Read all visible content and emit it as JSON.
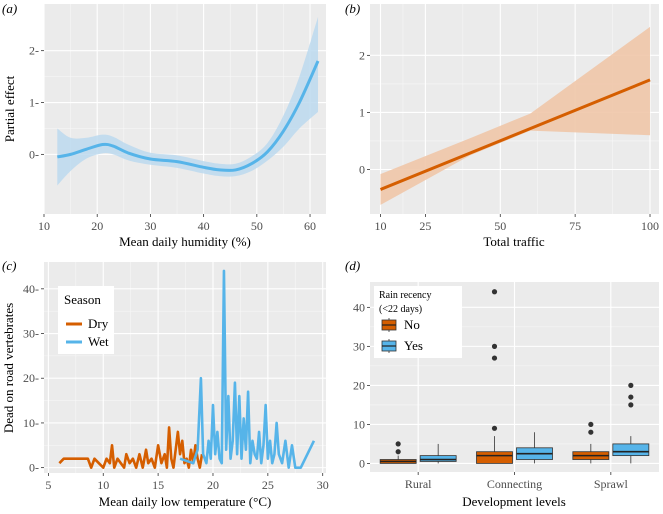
{
  "colors": {
    "blue": "#56b4e9",
    "blue_band": "#bcd9ef",
    "orange": "#d55e00",
    "orange_band": "#f0c7a8",
    "point": "#333333"
  },
  "chart_data": [
    {
      "id": "a",
      "letter": "(a)",
      "type": "line",
      "title": "",
      "xlabel": "Mean daily humidity (%)",
      "ylabel": "Partial effect",
      "xlim": [
        10,
        63
      ],
      "ylim": [
        -1.15,
        2.9
      ],
      "xticks": [
        "10",
        "20",
        "30",
        "40",
        "50",
        "60"
      ],
      "xtick_values": [
        10,
        20,
        30,
        40,
        50,
        60
      ],
      "yticks": [
        "0-",
        "1-",
        "2-"
      ],
      "ytick_values": [
        0,
        1,
        2
      ],
      "x": [
        12.5,
        15,
        18,
        21,
        23,
        26,
        30,
        35,
        40,
        43,
        46,
        49,
        52,
        55,
        58,
        61.5
      ],
      "y": [
        -0.05,
        0.0,
        0.1,
        0.19,
        0.16,
        0.02,
        -0.09,
        -0.14,
        -0.25,
        -0.3,
        -0.3,
        -0.18,
        0.05,
        0.45,
        1.0,
        1.8
      ],
      "ci_low": [
        -0.6,
        -0.32,
        -0.08,
        0.02,
        0.0,
        -0.12,
        -0.2,
        -0.26,
        -0.37,
        -0.42,
        -0.42,
        -0.32,
        -0.12,
        0.15,
        0.5,
        0.82
      ],
      "ci_high": [
        0.5,
        0.32,
        0.32,
        0.38,
        0.34,
        0.18,
        0.03,
        -0.02,
        -0.13,
        -0.18,
        -0.18,
        -0.04,
        0.22,
        0.75,
        1.5,
        2.65
      ]
    },
    {
      "id": "b",
      "letter": "(b)",
      "type": "line",
      "title": "",
      "xlabel": "Total traffic",
      "ylabel": "",
      "xlim": [
        6.5,
        103
      ],
      "ylim": [
        -0.78,
        2.9
      ],
      "xticks": [
        "10",
        "25",
        "50",
        "75",
        "100"
      ],
      "xtick_values": [
        10,
        25,
        50,
        75,
        100
      ],
      "yticks": [
        "0",
        "1",
        "2"
      ],
      "ytick_values": [
        0,
        1,
        2
      ],
      "x": [
        10,
        100
      ],
      "y": [
        -0.35,
        1.57
      ],
      "ci_low_x": [
        10,
        40,
        60,
        100
      ],
      "ci_low": [
        -0.62,
        0.25,
        0.68,
        0.6
      ],
      "ci_high_x": [
        10,
        40,
        60,
        100
      ],
      "ci_high": [
        -0.08,
        0.55,
        0.98,
        2.5
      ]
    },
    {
      "id": "c",
      "letter": "(c)",
      "type": "line",
      "title": "",
      "xlabel": "Mean daily low temperature (°C)",
      "ylabel": "Dead on road vertebrates",
      "xlim": [
        4.6,
        30.3
      ],
      "ylim": [
        -1.2,
        46
      ],
      "xticks": [
        "5",
        "10",
        "15",
        "20",
        "25",
        "30"
      ],
      "xtick_values": [
        5,
        10,
        15,
        20,
        25,
        30
      ],
      "yticks": [
        "0-",
        "10-",
        "20-",
        "30-",
        "40-"
      ],
      "ytick_values": [
        0,
        10,
        20,
        30,
        40
      ],
      "legend": {
        "title": "Season",
        "entries": [
          "Dry",
          "Wet"
        ]
      },
      "series": [
        {
          "name": "Dry",
          "x": [
            6.0,
            6.4,
            7.0,
            8.0,
            8.6,
            8.9,
            9.2,
            9.6,
            10.0,
            10.3,
            10.6,
            10.8,
            11.0,
            11.3,
            11.6,
            11.9,
            12.1,
            12.4,
            12.7,
            13.0,
            13.3,
            13.6,
            13.9,
            14.1,
            14.4,
            14.7,
            15.0,
            15.3,
            15.6,
            15.8,
            16.0,
            16.2,
            16.4,
            16.6,
            16.8,
            17.0,
            17.2,
            17.4,
            17.6,
            17.8,
            18.0,
            18.2,
            18.4,
            18.6,
            18.8,
            19.0
          ],
          "y": [
            1,
            2,
            2,
            2,
            2,
            0,
            2,
            1,
            0,
            2,
            1,
            5,
            0,
            2,
            1,
            0,
            3,
            1,
            2,
            0,
            3,
            0,
            4,
            1,
            2,
            0,
            5,
            1,
            3,
            0,
            9,
            2,
            0,
            4,
            8,
            3,
            6,
            1,
            2,
            0,
            4,
            1,
            5,
            2,
            0,
            3
          ]
        },
        {
          "name": "Wet",
          "x": [
            17.0,
            18.2,
            18.6,
            18.9,
            19.1,
            19.4,
            19.6,
            19.8,
            20.0,
            20.2,
            20.4,
            20.6,
            20.8,
            21.0,
            21.2,
            21.4,
            21.6,
            21.8,
            22.0,
            22.2,
            22.4,
            22.6,
            22.8,
            23.0,
            23.2,
            23.4,
            23.6,
            23.8,
            24.0,
            24.2,
            24.4,
            24.6,
            24.8,
            25.0,
            25.2,
            25.4,
            25.6,
            25.8,
            26.0,
            26.3,
            26.6,
            26.9,
            27.2,
            27.5,
            28.0,
            29.2
          ],
          "y": [
            2,
            1,
            4,
            20,
            3,
            1,
            6,
            2,
            14,
            3,
            8,
            2,
            1,
            44,
            4,
            16,
            2,
            6,
            19,
            3,
            16,
            2,
            11,
            4,
            17,
            1,
            6,
            3,
            2,
            8,
            1,
            5,
            14,
            2,
            6,
            1,
            3,
            10,
            3,
            1,
            6,
            0,
            5,
            0,
            0,
            6
          ]
        }
      ]
    },
    {
      "id": "d",
      "letter": "(d)",
      "type": "box",
      "title": "",
      "xlabel": "Development levels",
      "ylabel": "",
      "ylim": [
        -2.2,
        46.5
      ],
      "categories": [
        "Rural",
        "Connecting",
        "Sprawl"
      ],
      "yticks": [
        "0",
        "10",
        "20",
        "30",
        "40"
      ],
      "ytick_values": [
        0,
        10,
        20,
        30,
        40
      ],
      "legend": {
        "title_line1": "Rain recency",
        "title_line2": "(<22 days)",
        "entries": [
          "No",
          "Yes"
        ]
      },
      "boxes": [
        {
          "category": "Rural",
          "group": "No",
          "whisker_low": 0,
          "q1": 0,
          "median": 0.5,
          "q3": 1,
          "whisker_high": 2,
          "outliers": [
            3,
            5
          ]
        },
        {
          "category": "Rural",
          "group": "Yes",
          "whisker_low": 0,
          "q1": 0.5,
          "median": 1,
          "q3": 2,
          "whisker_high": 5,
          "outliers": []
        },
        {
          "category": "Connecting",
          "group": "No",
          "whisker_low": 0,
          "q1": 0,
          "median": 2,
          "q3": 3,
          "whisker_high": 7,
          "outliers": [
            9,
            27,
            30,
            44
          ]
        },
        {
          "category": "Connecting",
          "group": "Yes",
          "whisker_low": 0,
          "q1": 1,
          "median": 2.5,
          "q3": 4,
          "whisker_high": 8,
          "outliers": []
        },
        {
          "category": "Sprawl",
          "group": "No",
          "whisker_low": 0,
          "q1": 1,
          "median": 2,
          "q3": 3,
          "whisker_high": 5,
          "outliers": [
            8,
            10
          ]
        },
        {
          "category": "Sprawl",
          "group": "Yes",
          "whisker_low": 0,
          "q1": 2,
          "median": 3,
          "q3": 5,
          "whisker_high": 7,
          "outliers": [
            15,
            17,
            20
          ]
        }
      ]
    }
  ]
}
